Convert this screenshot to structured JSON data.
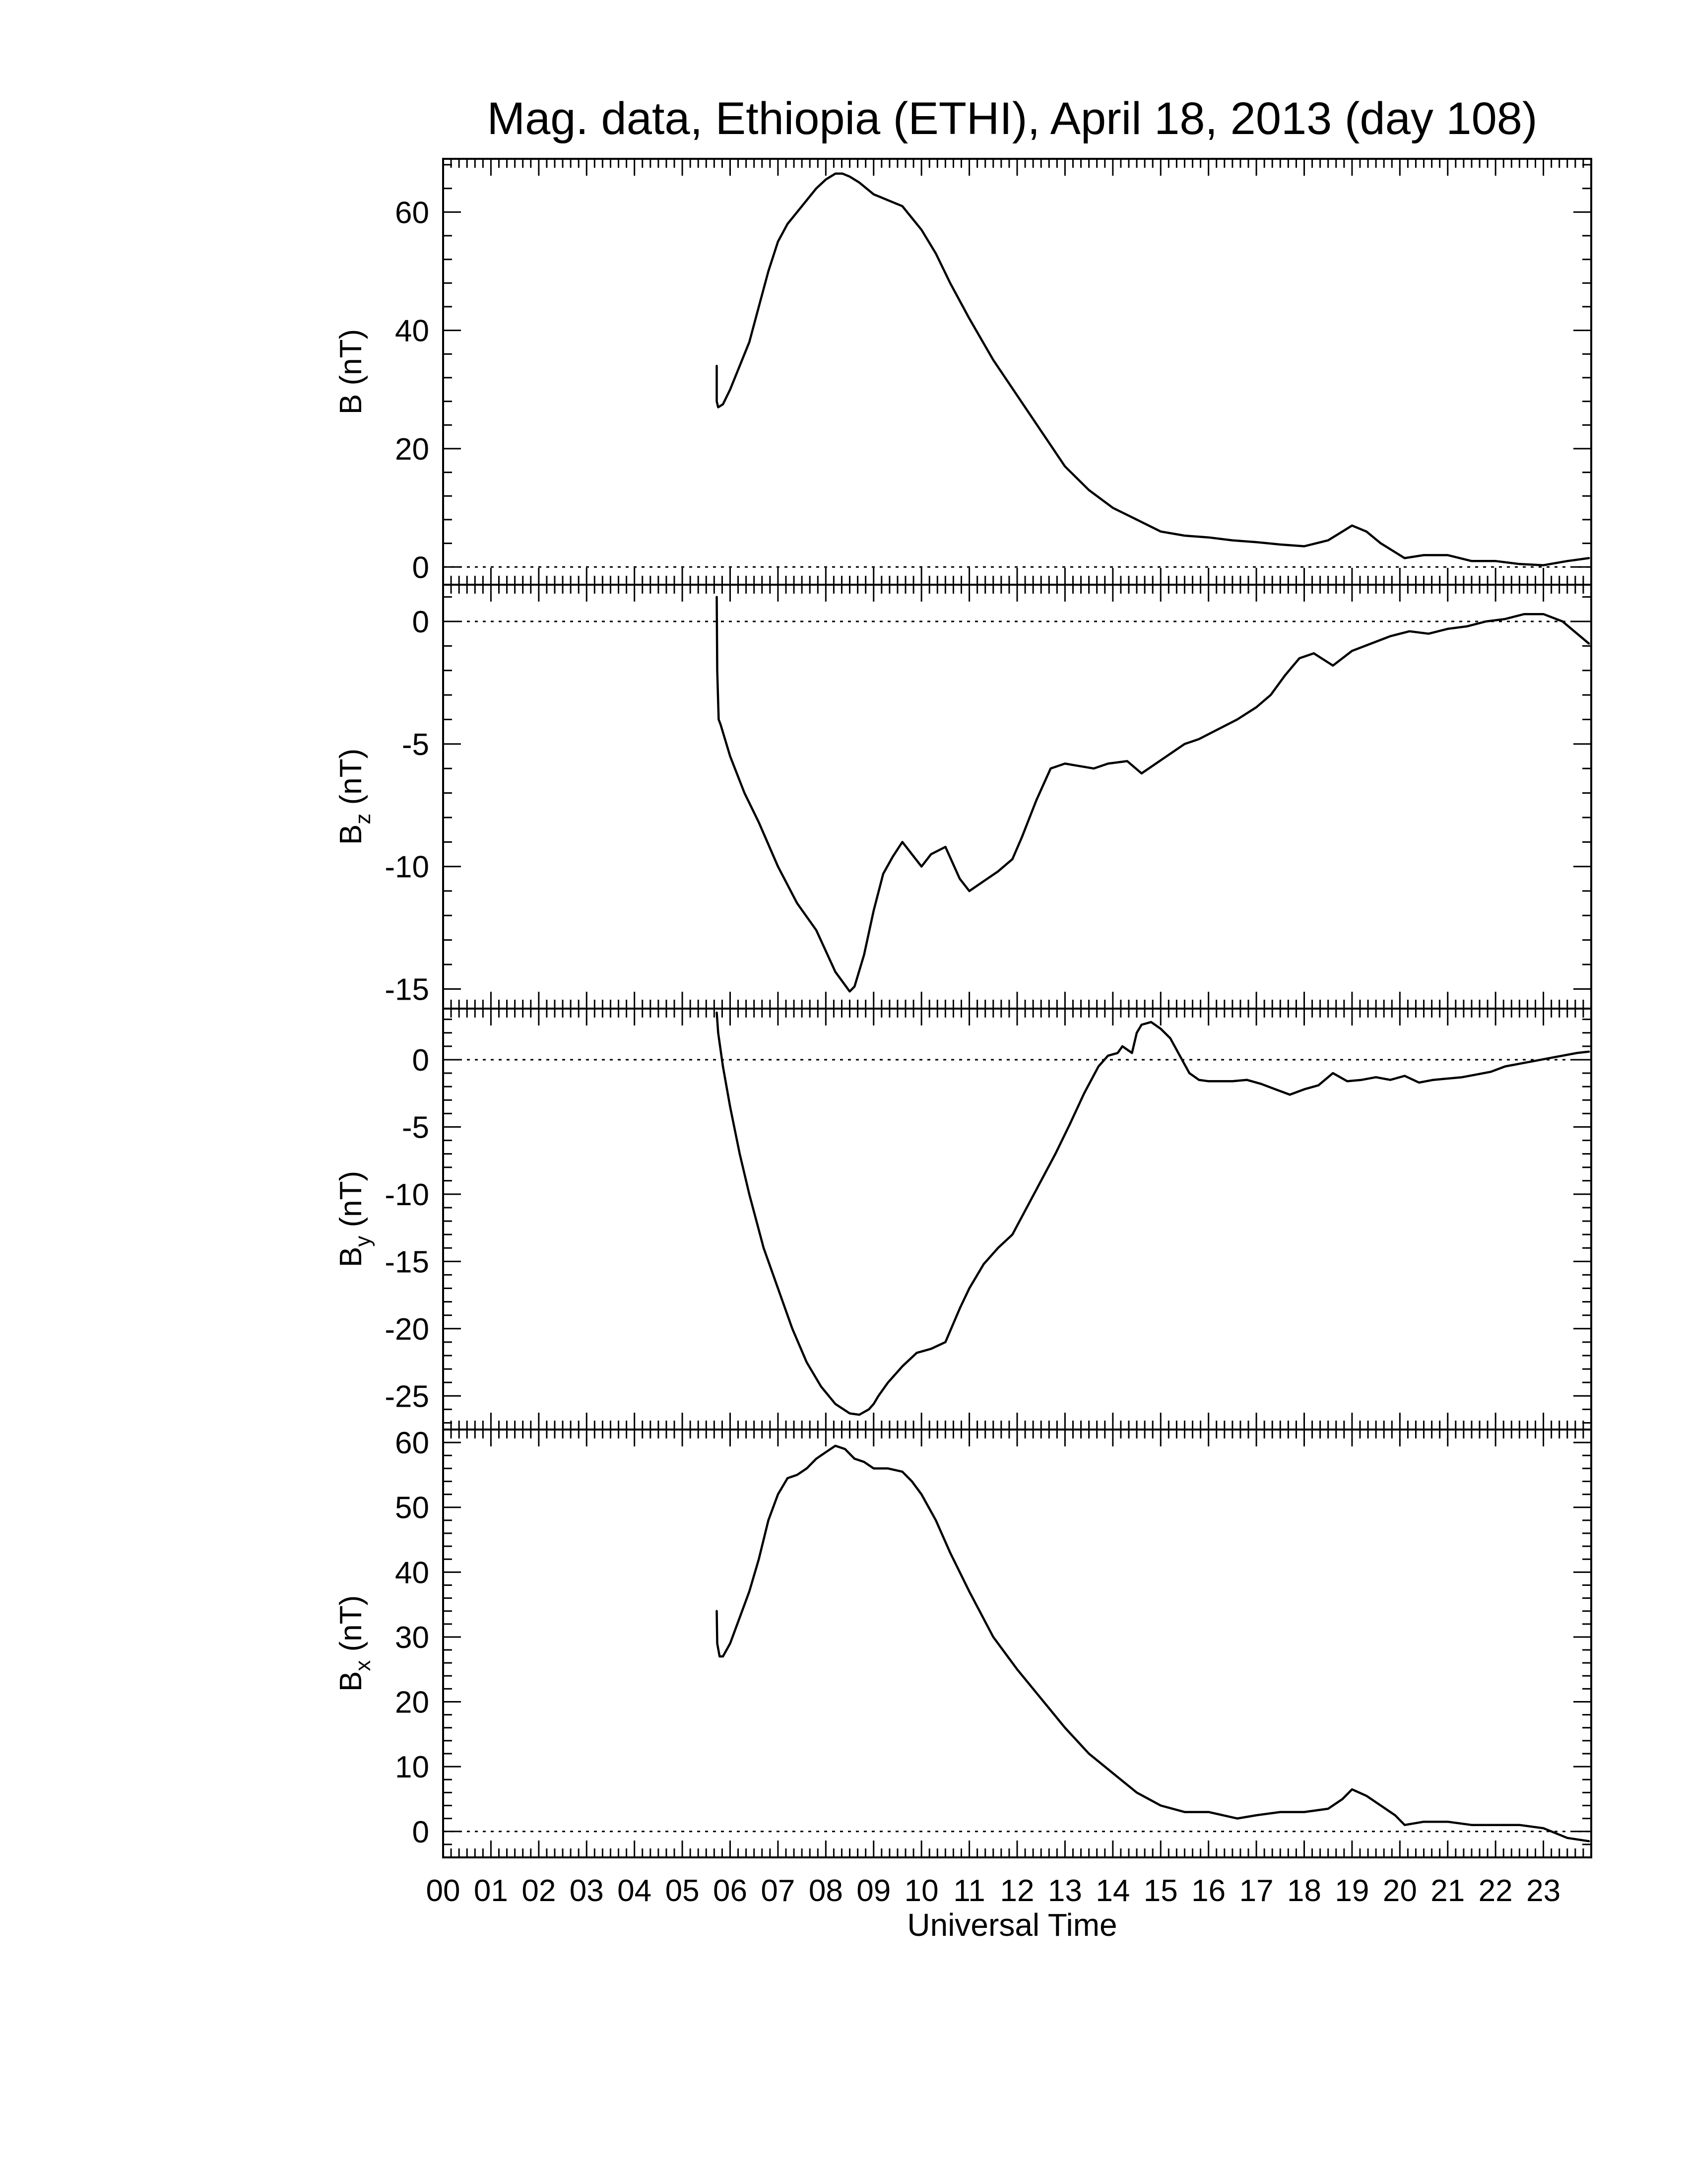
{
  "title": "Mag. data, Ethiopia (ETHI), April 18, 2013 (day 108)",
  "chart_data": [
    {
      "type": "line",
      "ylabel": "B (nT)",
      "ylabel_base": "B",
      "ylabel_sub": "",
      "ylabel_unit": " (nT)",
      "ylim": [
        -3,
        69
      ],
      "yticks": [
        0,
        20,
        40,
        60
      ],
      "ytick_labels": [
        "0",
        "20",
        "40",
        "60"
      ],
      "zero_line": true,
      "series": [
        {
          "x": [
            5.72,
            5.72,
            5.75,
            5.85,
            6.0,
            6.2,
            6.4,
            6.6,
            6.8,
            7.0,
            7.2,
            7.4,
            7.6,
            7.8,
            8.0,
            8.2,
            8.35,
            8.5,
            8.7,
            9.0,
            9.3,
            9.6,
            9.8,
            10.0,
            10.3,
            10.6,
            11.0,
            11.5,
            12.0,
            12.5,
            13.0,
            13.5,
            14.0,
            14.5,
            15.0,
            15.5,
            16.0,
            16.5,
            17.0,
            17.5,
            18.0,
            18.5,
            18.8,
            19.0,
            19.3,
            19.6,
            19.9,
            20.1,
            20.5,
            21.0,
            21.5,
            22.0,
            22.5,
            23.0,
            23.5,
            23.95
          ],
          "y": [
            34,
            28,
            27,
            27.5,
            30,
            34,
            38,
            44,
            50,
            55,
            58,
            60,
            62,
            64,
            65.5,
            66.5,
            66.5,
            66,
            65,
            63,
            62,
            61,
            59,
            57,
            53,
            48,
            42,
            35,
            29,
            23,
            17,
            13,
            10,
            8,
            6,
            5.3,
            5,
            4.5,
            4.2,
            3.8,
            3.5,
            4.5,
            6,
            7,
            6,
            4,
            2.5,
            1.5,
            2,
            2,
            1,
            1,
            0.5,
            0.3,
            1,
            1.5
          ]
        }
      ]
    },
    {
      "type": "line",
      "ylabel": "Bz (nT)",
      "ylabel_base": "B",
      "ylabel_sub": "z",
      "ylabel_unit": " (nT)",
      "ylim": [
        -15.8,
        1.5
      ],
      "yticks": [
        -15,
        -10,
        -5,
        0
      ],
      "ytick_labels": [
        "-15",
        "-10",
        "-5",
        "0"
      ],
      "zero_line": true,
      "series": [
        {
          "x": [
            5.72,
            5.73,
            5.76,
            5.8,
            6.0,
            6.3,
            6.6,
            7.0,
            7.4,
            7.8,
            8.2,
            8.5,
            8.6,
            8.8,
            9.0,
            9.2,
            9.4,
            9.6,
            9.8,
            10.0,
            10.2,
            10.5,
            10.8,
            11.0,
            11.3,
            11.6,
            11.9,
            12.1,
            12.4,
            12.7,
            13.0,
            13.3,
            13.6,
            13.9,
            14.3,
            14.6,
            14.9,
            15.2,
            15.5,
            15.8,
            16.2,
            16.6,
            17.0,
            17.3,
            17.6,
            17.9,
            18.2,
            18.6,
            19.0,
            19.4,
            19.8,
            20.2,
            20.6,
            21.0,
            21.4,
            21.8,
            22.2,
            22.6,
            23.0,
            23.4,
            23.95
          ],
          "y": [
            1,
            -2,
            -4,
            -4.2,
            -5.5,
            -7,
            -8.2,
            -10,
            -11.5,
            -12.6,
            -14.3,
            -15.1,
            -14.9,
            -13.6,
            -11.8,
            -10.3,
            -9.6,
            -9,
            -9.5,
            -10,
            -9.5,
            -9.2,
            -10.5,
            -11,
            -10.6,
            -10.2,
            -9.7,
            -8.8,
            -7.3,
            -6,
            -5.8,
            -5.9,
            -6,
            -5.8,
            -5.7,
            -6.2,
            -5.8,
            -5.4,
            -5,
            -4.8,
            -4.4,
            -4,
            -3.5,
            -3,
            -2.2,
            -1.5,
            -1.3,
            -1.8,
            -1.2,
            -0.9,
            -0.6,
            -0.4,
            -0.5,
            -0.3,
            -0.2,
            0,
            0.1,
            0.3,
            0.3,
            0,
            -0.9
          ]
        }
      ]
    },
    {
      "type": "line",
      "ylabel": "By (nT)",
      "ylabel_base": "B",
      "ylabel_sub": "y",
      "ylabel_unit": " (nT)",
      "ylim": [
        -27.5,
        3.8
      ],
      "yticks": [
        -25,
        -20,
        -15,
        -10,
        -5,
        0
      ],
      "ytick_labels": [
        "-25",
        "-20",
        "-15",
        "-10",
        "-5",
        "0"
      ],
      "zero_line": true,
      "series": [
        {
          "x": [
            5.72,
            5.75,
            5.85,
            6.0,
            6.2,
            6.4,
            6.7,
            7.0,
            7.3,
            7.6,
            7.9,
            8.2,
            8.5,
            8.7,
            8.9,
            9.0,
            9.1,
            9.3,
            9.6,
            9.9,
            10.2,
            10.5,
            10.8,
            11.0,
            11.3,
            11.6,
            11.9,
            12.2,
            12.5,
            12.8,
            13.1,
            13.4,
            13.7,
            13.9,
            14.1,
            14.2,
            14.4,
            14.5,
            14.6,
            14.8,
            15.0,
            15.2,
            15.4,
            15.6,
            15.8,
            16.0,
            16.2,
            16.5,
            16.8,
            17.1,
            17.4,
            17.7,
            18.0,
            18.3,
            18.6,
            18.9,
            19.2,
            19.5,
            19.8,
            20.1,
            20.4,
            20.7,
            21.0,
            21.3,
            21.6,
            21.9,
            22.2,
            22.5,
            22.8,
            23.1,
            23.4,
            23.7,
            23.95
          ],
          "y": [
            3.5,
            2,
            -0.5,
            -3.5,
            -7,
            -10,
            -14,
            -17,
            -20,
            -22.5,
            -24.3,
            -25.6,
            -26.3,
            -26.4,
            -26,
            -25.6,
            -25,
            -24,
            -22.8,
            -21.8,
            -21.5,
            -21,
            -18.5,
            -17,
            -15.2,
            -14,
            -13,
            -11,
            -9,
            -7,
            -4.8,
            -2.5,
            -0.5,
            0.3,
            0.5,
            1,
            0.5,
            2,
            2.6,
            2.8,
            2.3,
            1.6,
            0.3,
            -1,
            -1.5,
            -1.6,
            -1.6,
            -1.6,
            -1.5,
            -1.8,
            -2.2,
            -2.6,
            -2.2,
            -1.9,
            -1,
            -1.6,
            -1.5,
            -1.3,
            -1.5,
            -1.2,
            -1.7,
            -1.5,
            -1.4,
            -1.3,
            -1.1,
            -0.9,
            -0.5,
            -0.3,
            -0.1,
            0.1,
            0.3,
            0.5,
            0.6
          ]
        }
      ]
    },
    {
      "type": "line",
      "ylabel": "Bx (nT)",
      "ylabel_base": "B",
      "ylabel_sub": "x",
      "ylabel_unit": " (nT)",
      "ylim": [
        -4,
        62
      ],
      "yticks": [
        0,
        10,
        20,
        30,
        40,
        50,
        60
      ],
      "ytick_labels": [
        "0",
        "10",
        "20",
        "30",
        "40",
        "50",
        "60"
      ],
      "zero_line": true,
      "series": [
        {
          "x": [
            5.72,
            5.73,
            5.78,
            5.85,
            6.0,
            6.2,
            6.4,
            6.6,
            6.8,
            7.0,
            7.2,
            7.4,
            7.6,
            7.8,
            8.0,
            8.2,
            8.4,
            8.6,
            8.8,
            9.0,
            9.3,
            9.6,
            9.8,
            10.0,
            10.3,
            10.6,
            11.0,
            11.5,
            12.0,
            12.5,
            13.0,
            13.5,
            14.0,
            14.5,
            15.0,
            15.5,
            16.0,
            16.3,
            16.6,
            17.0,
            17.5,
            18.0,
            18.5,
            18.8,
            19.0,
            19.3,
            19.6,
            19.9,
            20.1,
            20.5,
            21.0,
            21.5,
            22.0,
            22.5,
            23.0,
            23.5,
            23.95
          ],
          "y": [
            34,
            29,
            27,
            27,
            29,
            33,
            37,
            42,
            48,
            52,
            54.5,
            55,
            56,
            57.5,
            58.5,
            59.5,
            59,
            57.5,
            57,
            56,
            56,
            55.5,
            54,
            52,
            48,
            43,
            37,
            30,
            25,
            20.5,
            16,
            12,
            9,
            6,
            4,
            3,
            3,
            2.5,
            2,
            2.5,
            3,
            3,
            3.5,
            5,
            6.5,
            5.5,
            4,
            2.5,
            1,
            1.5,
            1.5,
            1,
            1,
            1,
            0.5,
            -1,
            -1.5
          ]
        }
      ]
    }
  ],
  "x_axis": {
    "label": "Universal Time",
    "xlim": [
      0,
      24
    ],
    "tick_labels": [
      "00",
      "01",
      "02",
      "03",
      "04",
      "05",
      "06",
      "07",
      "08",
      "09",
      "10",
      "11",
      "12",
      "13",
      "14",
      "15",
      "16",
      "17",
      "18",
      "19",
      "20",
      "21",
      "22",
      "23"
    ]
  }
}
